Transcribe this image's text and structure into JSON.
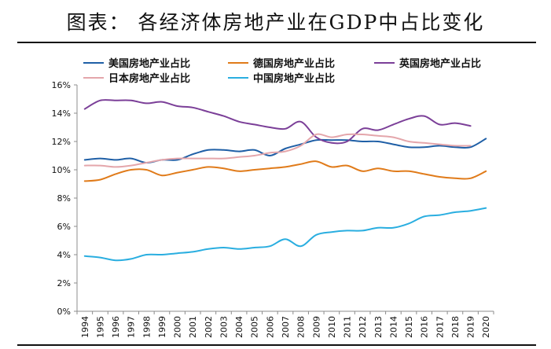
{
  "title": "图表： 各经济体房地产业在GDP中占比变化",
  "chart_data": {
    "type": "line",
    "x": [
      1994,
      1995,
      1996,
      1997,
      1998,
      1999,
      2000,
      2001,
      2002,
      2003,
      2004,
      2005,
      2006,
      2007,
      2008,
      2009,
      2010,
      2011,
      2012,
      2013,
      2014,
      2015,
      2016,
      2017,
      2018,
      2019,
      2020
    ],
    "x_tick_labels": [
      "1994",
      "1995",
      "1996",
      "1997",
      "1998",
      "1999",
      "2000",
      "2001",
      "2002",
      "2003",
      "2004",
      "2005",
      "2006",
      "2007",
      "2008",
      "2009",
      "2010",
      "2011",
      "2012",
      "2013",
      "2014",
      "2015",
      "2016",
      "2017",
      "2018",
      "2019",
      "2020"
    ],
    "y_tick_labels": [
      "0%",
      "2%",
      "4%",
      "6%",
      "8%",
      "10%",
      "12%",
      "14%",
      "16%"
    ],
    "ylim": [
      0,
      16
    ],
    "grid": false,
    "legend_position": "top",
    "series": [
      {
        "name": "美国房地产业占比",
        "color": "#1f5fa6",
        "values": [
          10.7,
          10.8,
          10.7,
          10.8,
          10.5,
          10.7,
          10.7,
          11.1,
          11.4,
          11.4,
          11.3,
          11.4,
          11.0,
          11.5,
          11.8,
          12.1,
          12.1,
          12.1,
          12.0,
          12.0,
          11.8,
          11.6,
          11.6,
          11.7,
          11.6,
          11.6,
          12.2
        ]
      },
      {
        "name": "德国房地产业占比",
        "color": "#e07b1a",
        "values": [
          9.2,
          9.3,
          9.7,
          10.0,
          10.0,
          9.6,
          9.8,
          10.0,
          10.2,
          10.1,
          9.9,
          10.0,
          10.1,
          10.2,
          10.4,
          10.6,
          10.2,
          10.3,
          9.9,
          10.1,
          9.9,
          9.9,
          9.7,
          9.5,
          9.4,
          9.4,
          9.9
        ]
      },
      {
        "name": "英国房地产业占比",
        "color": "#7b3f98",
        "values": [
          14.3,
          14.9,
          14.9,
          14.9,
          14.7,
          14.8,
          14.5,
          14.4,
          14.1,
          13.8,
          13.4,
          13.2,
          13.0,
          12.9,
          13.4,
          12.3,
          11.9,
          12.0,
          12.9,
          12.8,
          13.2,
          13.6,
          13.8,
          13.2,
          13.3,
          13.1,
          null
        ]
      },
      {
        "name": "日本房地产业占比",
        "color": "#e4a6ab",
        "values": [
          10.3,
          10.3,
          10.2,
          10.3,
          10.5,
          10.7,
          10.8,
          10.8,
          10.8,
          10.8,
          10.9,
          11.0,
          11.2,
          11.3,
          11.7,
          12.5,
          12.3,
          12.5,
          12.5,
          12.4,
          12.3,
          12.0,
          11.9,
          11.8,
          11.7,
          11.7,
          null
        ]
      },
      {
        "name": "中国房地产业占比",
        "color": "#2aaee0",
        "values": [
          3.9,
          3.8,
          3.6,
          3.7,
          4.0,
          4.0,
          4.1,
          4.2,
          4.4,
          4.5,
          4.4,
          4.5,
          4.6,
          5.1,
          4.6,
          5.4,
          5.6,
          5.7,
          5.7,
          5.9,
          5.9,
          6.2,
          6.7,
          6.8,
          7.0,
          7.1,
          7.3
        ]
      }
    ]
  }
}
